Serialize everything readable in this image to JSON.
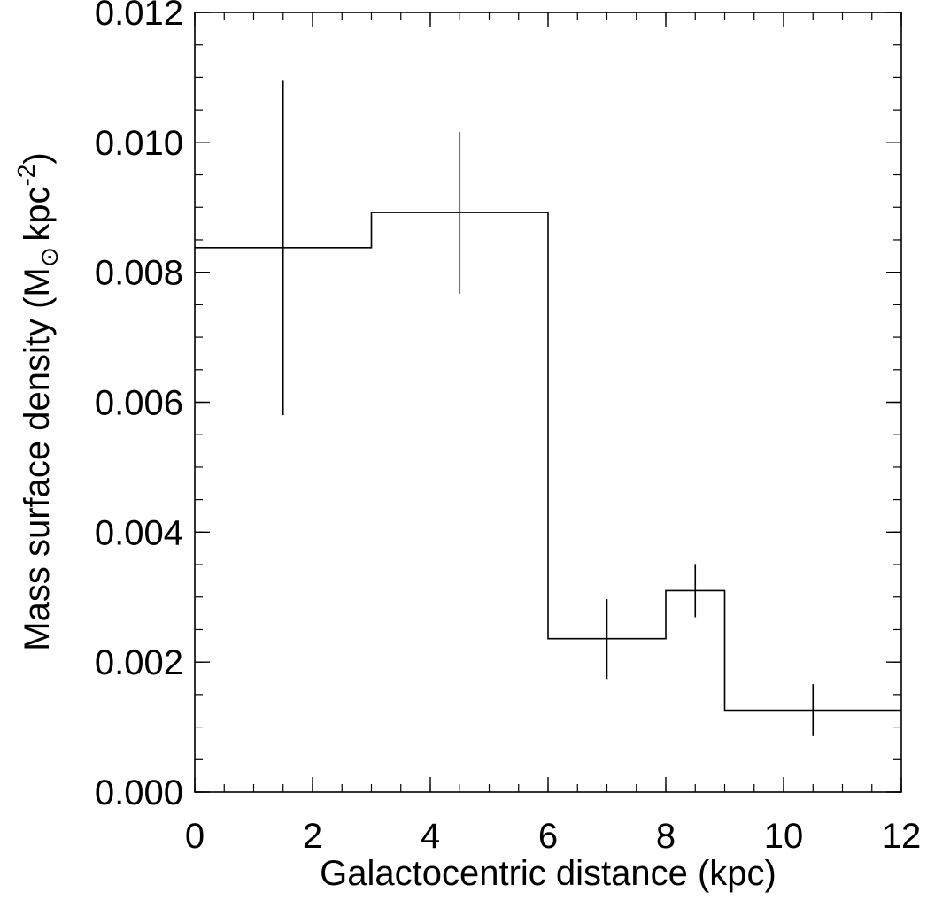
{
  "chart_data": {
    "type": "step",
    "title": "",
    "xlabel": "Galactocentric distance (kpc)",
    "ylabel": {
      "prefix": "Mass surface density (M",
      "sun_symbol": "⊙",
      "unit": "kpc",
      "exponent": "-2",
      "suffix": ")"
    },
    "xlim": [
      0,
      12
    ],
    "ylim": [
      0.0,
      0.012
    ],
    "x_ticks": [
      "0",
      "2",
      "4",
      "6",
      "8",
      "10",
      "12"
    ],
    "y_ticks": [
      "0.000",
      "0.002",
      "0.004",
      "0.006",
      "0.008",
      "0.010",
      "0.012"
    ],
    "grid": false,
    "series": [
      {
        "bins": [
          {
            "x_start": 0,
            "x_end": 3,
            "x_center": 1.5,
            "value": 0.00838,
            "err_low": 0.0058,
            "err_high": 0.01096
          },
          {
            "x_start": 3,
            "x_end": 6,
            "x_center": 4.5,
            "value": 0.00892,
            "err_low": 0.00767,
            "err_high": 0.01016
          },
          {
            "x_start": 6,
            "x_end": 8,
            "x_center": 7.0,
            "value": 0.00236,
            "err_low": 0.00174,
            "err_high": 0.00297
          },
          {
            "x_start": 8,
            "x_end": 9,
            "x_center": 8.5,
            "value": 0.0031,
            "err_low": 0.00269,
            "err_high": 0.00351
          },
          {
            "x_start": 9,
            "x_end": 12,
            "x_center": 10.5,
            "value": 0.00126,
            "err_low": 0.00086,
            "err_high": 0.00166
          }
        ]
      }
    ]
  }
}
